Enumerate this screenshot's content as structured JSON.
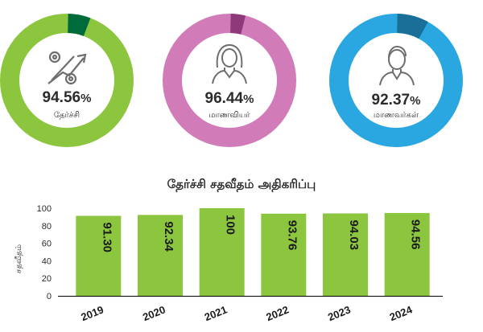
{
  "rings": [
    {
      "id": "pass",
      "percent_label": "94.56",
      "pct_sign": "%",
      "label": "தேர்ச்சி",
      "value": 94.56,
      "color": "#8cc63f",
      "dark_color": "#006b3a",
      "icon": "growth-icon"
    },
    {
      "id": "female",
      "percent_label": "96.44",
      "pct_sign": "%",
      "label": "மாணவியர்",
      "value": 96.44,
      "color": "#d17bb8",
      "dark_color": "#8e3a7a",
      "icon": "female-student-icon"
    },
    {
      "id": "male",
      "percent_label": "92.37",
      "pct_sign": "%",
      "label": "மாணவர்கள்",
      "value": 92.37,
      "color": "#2aa7e0",
      "dark_color": "#1a6f99",
      "icon": "male-student-icon"
    }
  ],
  "chart_data": {
    "type": "bar",
    "title": "தேர்ச்சி சதவீதம் அதிகரிப்பு",
    "ylabel": "சதவீதம்",
    "xlabel": "",
    "categories": [
      "2019",
      "2020",
      "2021",
      "2022",
      "2023",
      "2024"
    ],
    "values": [
      91.3,
      92.34,
      100,
      93.76,
      94.03,
      94.56
    ],
    "value_labels": [
      "91.30",
      "92.34",
      "100",
      "93.76",
      "94.03",
      "94.56"
    ],
    "ylim": [
      0,
      100
    ],
    "yticks": [
      "0",
      "20",
      "40",
      "60",
      "80",
      "100"
    ],
    "grid": false,
    "bar_color": "#8cc63f"
  }
}
